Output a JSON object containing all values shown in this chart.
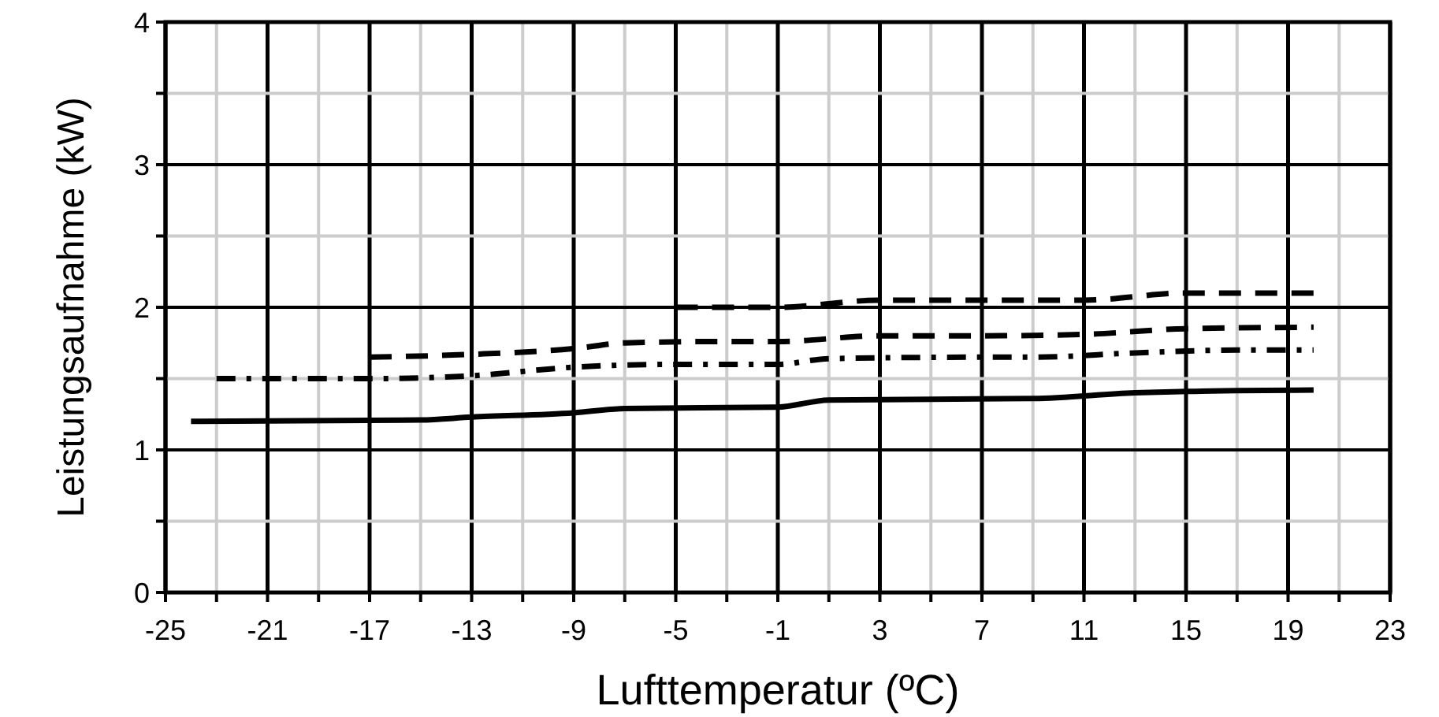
{
  "chart_data": {
    "type": "line",
    "xlabel": "Lufttemperatur (ºC)",
    "ylabel": "Leistungsaufnahme (kW)",
    "xlim": [
      -25,
      23
    ],
    "ylim": [
      0,
      4
    ],
    "xticks": [
      -25,
      {
        "value": -23,
        "label": null
      },
      -21,
      {
        "value": -19,
        "label": null
      },
      -17,
      {
        "value": -15,
        "label": null
      },
      -13,
      {
        "value": -11,
        "label": null
      },
      -9,
      {
        "value": -7,
        "label": null
      },
      -5,
      {
        "value": -3,
        "label": null
      },
      -1,
      {
        "value": 1,
        "label": null
      },
      3,
      {
        "value": 5,
        "label": null
      },
      7,
      {
        "value": 9,
        "label": null
      },
      11,
      {
        "value": 13,
        "label": null
      },
      15,
      {
        "value": 17,
        "label": null
      },
      19,
      {
        "value": 21,
        "label": null
      },
      23
    ],
    "yticks": [
      0,
      {
        "value": 0.5,
        "label": null
      },
      1,
      {
        "value": 1.5,
        "label": null
      },
      2,
      {
        "value": 2.5,
        "label": null
      },
      3,
      {
        "value": 3.5,
        "label": null
      },
      4
    ],
    "grid": true,
    "marker": "none",
    "series": [
      {
        "color": "#000000",
        "line_style": "solid",
        "x": [
          -24,
          -15,
          -13,
          -9,
          -7,
          -1,
          1,
          9,
          13,
          15,
          20
        ],
        "values": [
          1.2,
          1.21,
          1.23,
          1.26,
          1.29,
          1.3,
          1.35,
          1.36,
          1.4,
          1.41,
          1.42
        ]
      },
      {
        "color": "#000000",
        "line_style": "dotted",
        "x": [
          -23,
          -17,
          -13,
          -9,
          -5,
          -1,
          1,
          7,
          9,
          13,
          17,
          20
        ],
        "values": [
          1.5,
          1.5,
          1.52,
          1.58,
          1.6,
          1.6,
          1.64,
          1.65,
          1.65,
          1.68,
          1.7,
          1.7
        ]
      },
      {
        "color": "#000000",
        "line_style": "dashed",
        "x": [
          -17,
          -13,
          -9,
          -7,
          -3,
          -1,
          3,
          7,
          11,
          15,
          20
        ],
        "values": [
          1.65,
          1.67,
          1.71,
          1.75,
          1.76,
          1.76,
          1.8,
          1.8,
          1.81,
          1.85,
          1.86
        ]
      },
      {
        "color": "#000000",
        "line_style": "dashed",
        "x": [
          -5,
          -1,
          3,
          11,
          15,
          20
        ],
        "values": [
          2.0,
          2.0,
          2.05,
          2.05,
          2.1,
          2.1
        ]
      }
    ]
  }
}
